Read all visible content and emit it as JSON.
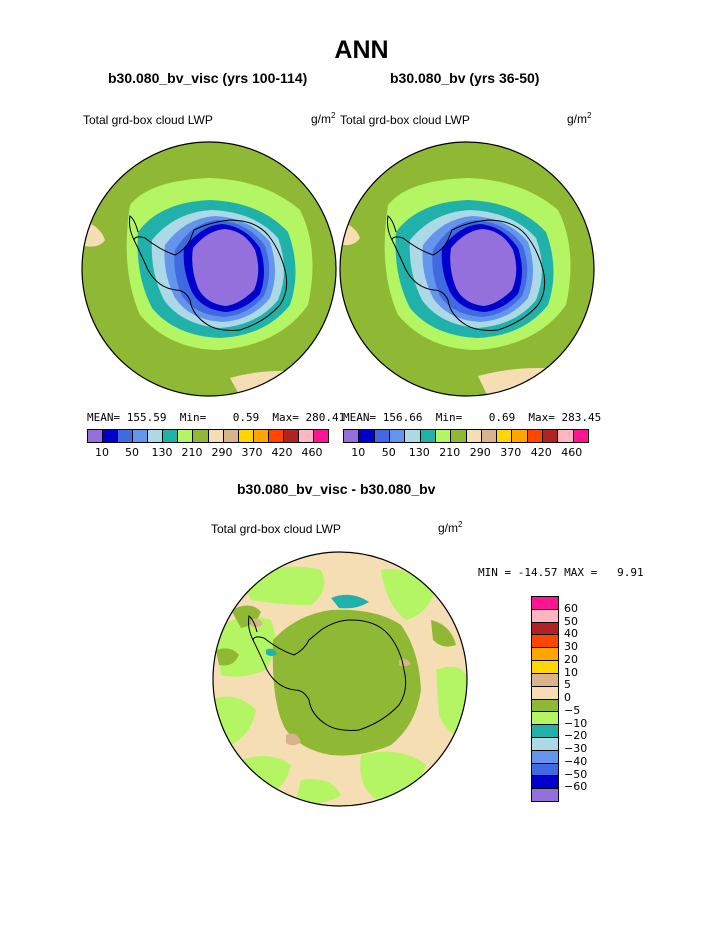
{
  "header": {
    "title": "ANN"
  },
  "panels": [
    {
      "case": "b30.080_bv_visc (yrs 100-114)",
      "field": "Total grd-box cloud LWP",
      "units": "g/m",
      "units_sup": "2",
      "stats": "MEAN= 155.59  Min=    0.59  Max= 280.41"
    },
    {
      "case": "b30.080_bv (yrs 36-50)",
      "field": "Total grd-box cloud LWP",
      "units": "g/m",
      "units_sup": "2",
      "stats": "MEAN= 156.66  Min=    0.69  Max= 283.45"
    }
  ],
  "diff": {
    "title": "b30.080_bv_visc - b30.080_bv",
    "field": "Total grd-box cloud LWP",
    "units": "g/m",
    "units_sup": "2",
    "stats": "MIN = -14.57 MAX =   9.91"
  },
  "colorbar_top": {
    "colors": [
      "#9370db",
      "#0000cd",
      "#4169e1",
      "#6495ed",
      "#add8e6",
      "#20b2aa",
      "#b4f564",
      "#8fb835",
      "#f5deb3",
      "#d9b38c",
      "#ffd700",
      "#ffa500",
      "#ff4500",
      "#b22222",
      "#ffb6c1",
      "#ff1493"
    ],
    "ticks": [
      "10",
      "50",
      "130",
      "210",
      "290",
      "370",
      "420",
      "460"
    ],
    "tick_index": [
      1,
      3,
      5,
      7,
      9,
      11,
      13,
      15
    ]
  },
  "colorbar_diff": {
    "colors_top_to_bottom": [
      "#ff1493",
      "#ffb6c1",
      "#b22222",
      "#ff4500",
      "#ffa500",
      "#ffd700",
      "#d9b38c",
      "#f5deb3",
      "#8fb835",
      "#b4f564",
      "#20b2aa",
      "#add8e6",
      "#6495ed",
      "#4169e1",
      "#0000cd",
      "#9370db"
    ],
    "ticks": [
      "60",
      "50",
      "40",
      "30",
      "20",
      "10",
      "5",
      "0",
      "−5",
      "−10",
      "−20",
      "−30",
      "−40",
      "−50",
      "−60"
    ]
  }
}
